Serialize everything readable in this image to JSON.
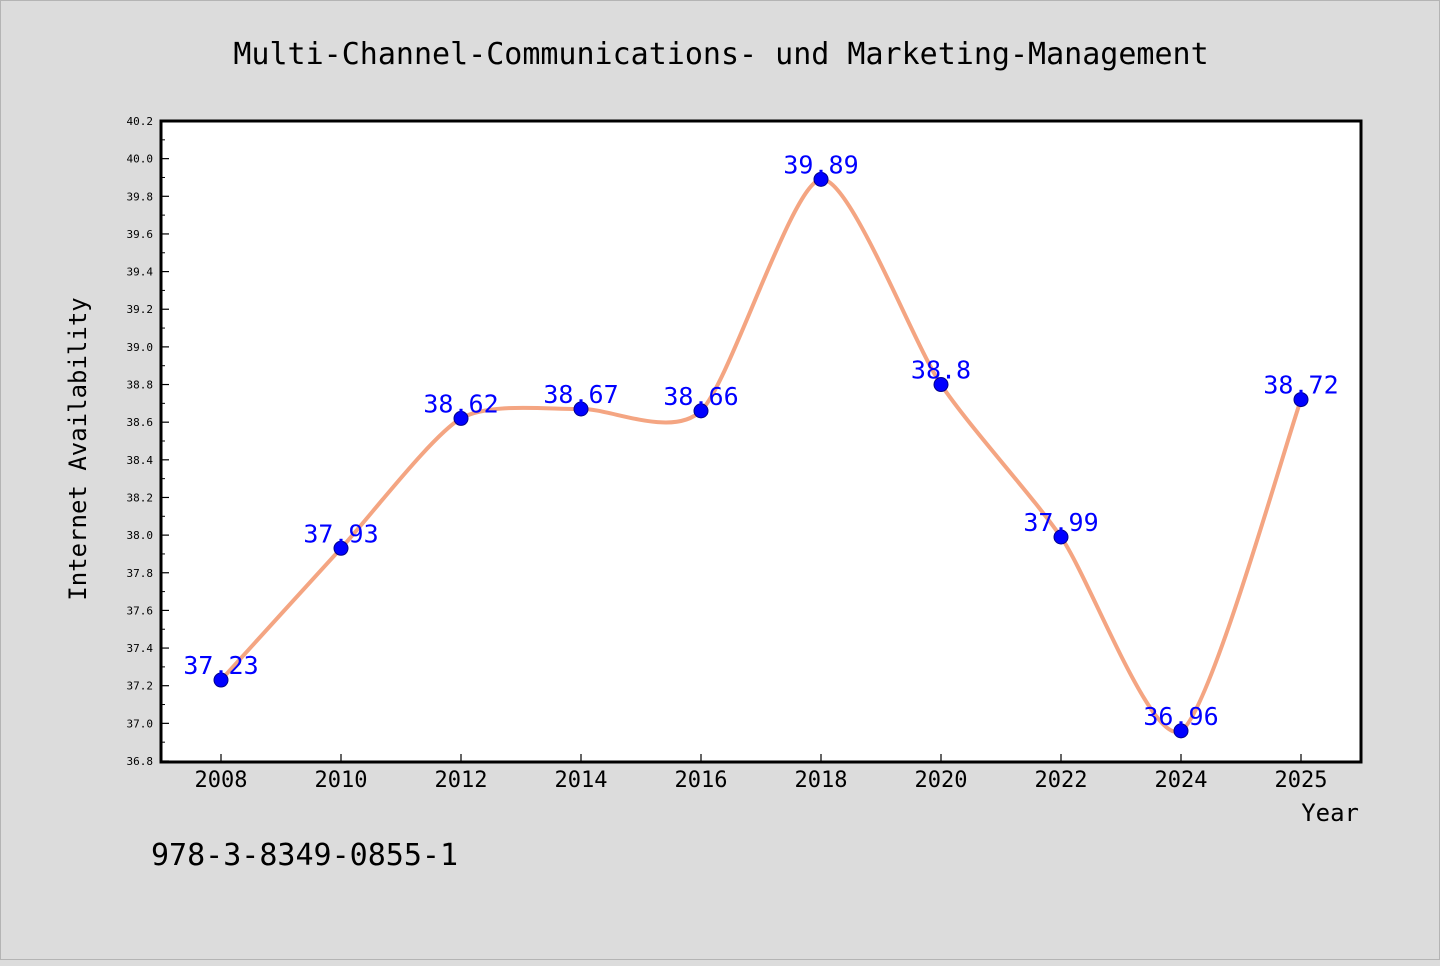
{
  "chart_data": {
    "type": "line",
    "title": "Multi-Channel-Communications- und Marketing-Management",
    "xlabel": "Year",
    "ylabel": "Internet Availability",
    "categories": [
      "2008",
      "2010",
      "2012",
      "2014",
      "2016",
      "2018",
      "2020",
      "2022",
      "2024",
      "2025"
    ],
    "series": [
      {
        "values": [
          37.23,
          37.93,
          38.62,
          38.67,
          38.66,
          39.89,
          38.8,
          37.99,
          36.96,
          38.72
        ],
        "data_labels": [
          "37.23",
          "37.93",
          "38.62",
          "38.67",
          "38.66",
          "39.89",
          "38.8",
          "37.99",
          "36.96",
          "38.72"
        ]
      }
    ],
    "ylim": [
      36.8,
      40.2
    ],
    "y_ticks": [
      "36.8",
      "37.0",
      "37.2",
      "37.4",
      "37.6",
      "37.8",
      "38.0",
      "38.2",
      "38.4",
      "38.6",
      "38.8",
      "39.0",
      "39.2",
      "39.4",
      "39.6",
      "39.8",
      "40.0",
      "40.2"
    ],
    "grid": false,
    "legend": "none",
    "annotation": "978-3-8349-0855-1",
    "colors": {
      "background": "#dcdcdc",
      "plot_background": "#ffffff",
      "line": "#f4a582",
      "marker": "#0000ff",
      "data_label": "#0000ff"
    }
  }
}
